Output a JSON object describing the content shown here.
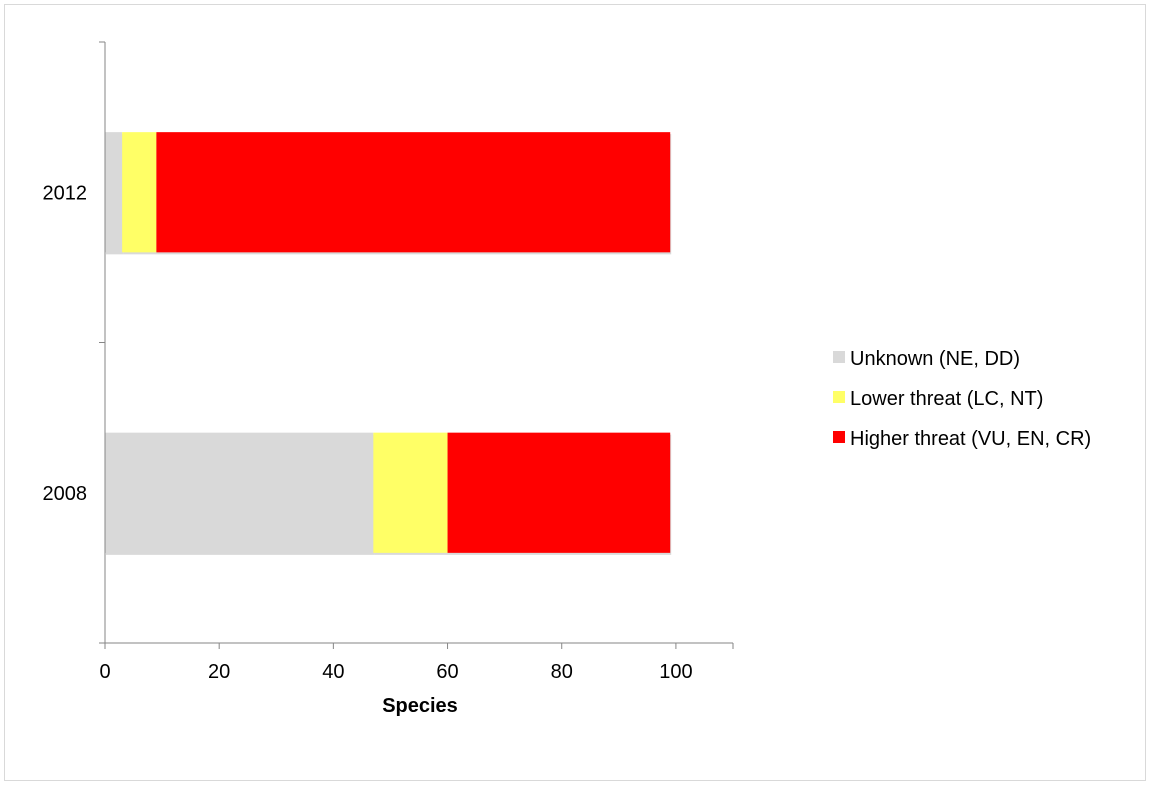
{
  "chart_data": {
    "type": "bar",
    "orientation": "horizontal",
    "stacked": true,
    "categories": [
      "2012",
      "2008"
    ],
    "series": [
      {
        "name": "Unknown (NE, DD)",
        "color": "#d9d9d9",
        "values": [
          3,
          47
        ]
      },
      {
        "name": "Lower threat (LC, NT)",
        "color": "#ffff66",
        "values": [
          6,
          13
        ]
      },
      {
        "name": "Higher threat (VU, EN, CR)",
        "color": "#ff0000",
        "values": [
          90,
          39
        ]
      }
    ],
    "xlabel": "Species",
    "ylabel": "",
    "xlim": [
      0,
      110
    ],
    "xticks": [
      0,
      20,
      40,
      60,
      80,
      100
    ],
    "grid": false,
    "legend_position": "right"
  }
}
